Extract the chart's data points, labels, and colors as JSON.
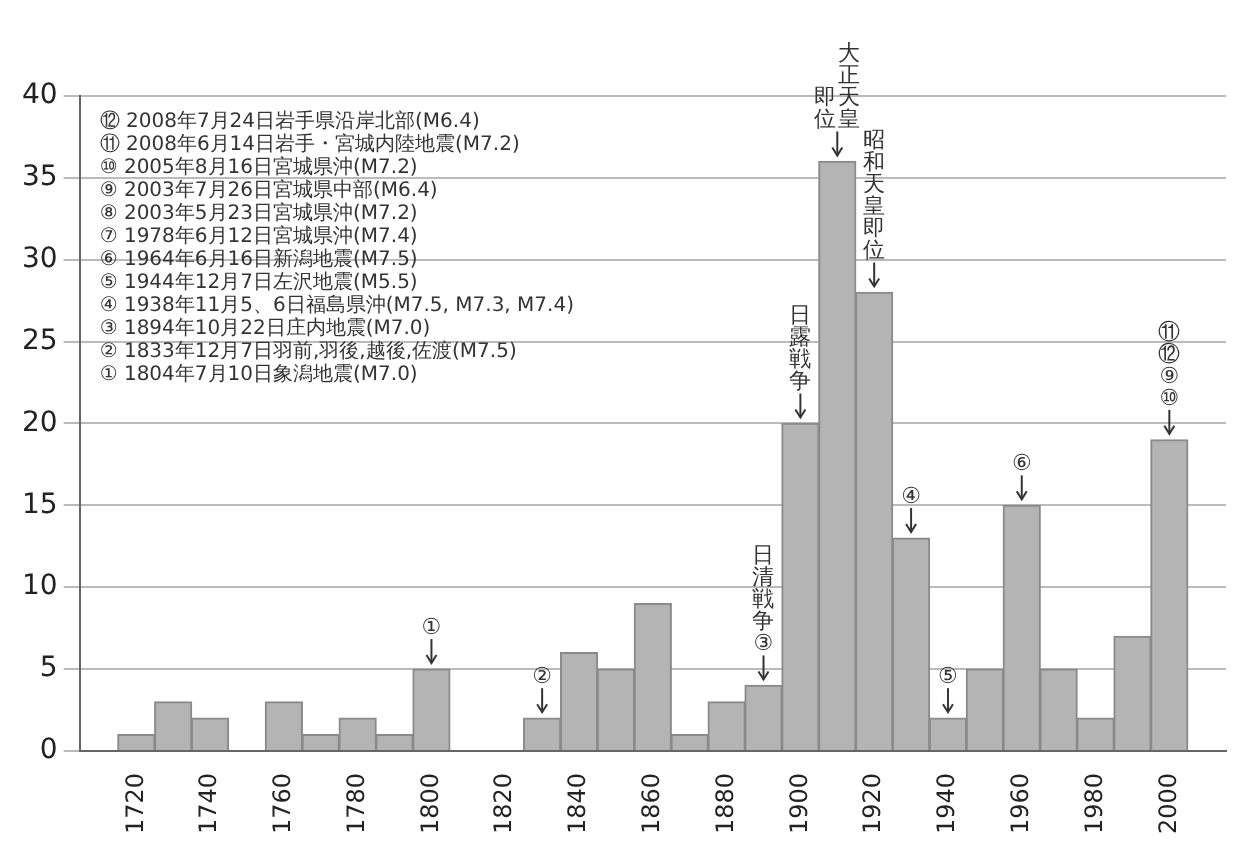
{
  "chart_data": {
    "type": "bar",
    "x": [
      1720,
      1730,
      1740,
      1750,
      1760,
      1770,
      1780,
      1790,
      1800,
      1810,
      1820,
      1830,
      1840,
      1850,
      1860,
      1870,
      1880,
      1890,
      1900,
      1910,
      1920,
      1930,
      1940,
      1950,
      1960,
      1970,
      1980,
      1990,
      2000
    ],
    "values": [
      1,
      3,
      2,
      0,
      3,
      1,
      2,
      1,
      5,
      0,
      0,
      2,
      6,
      5,
      9,
      1,
      3,
      4,
      20,
      36,
      28,
      13,
      2,
      5,
      15,
      5,
      2,
      7,
      19
    ],
    "color": "#b4b4b4",
    "xlim": [
      1715,
      2005
    ],
    "xticks": [
      1720,
      1740,
      1760,
      1780,
      1800,
      1820,
      1840,
      1860,
      1880,
      1900,
      1920,
      1940,
      1960,
      1980,
      2000
    ],
    "ylim": [
      0,
      40
    ],
    "yticks": [
      0,
      5,
      10,
      15,
      20,
      25,
      30,
      35,
      40
    ],
    "grid": "y",
    "annotations": [
      "⑫ 2008年7月24日岩手県沿岸北部(M6.4)",
      "⑪ 2008年6月14日岩手・宮城内陸地震(M7.2)",
      "⑩ 2005年8月16日宮城県沖(M7.2)",
      "⑨ 2003年7月26日宮城県中部(M6.4)",
      "⑧ 2003年5月23日宮城県沖(M7.2)",
      "⑦ 1978年6月12日宮城県沖(M7.4)",
      "⑥ 1964年6月16日新潟地震(M7.5)",
      "⑤ 1944年12月7日左沢地震(M5.5)",
      "④ 1938年11月5、6日福島県沖(M7.5, M7.3, M7.4)",
      "③ 1894年10月22日庄内地震(M7.0)",
      "② 1833年12月7日羽前,羽後,越後,佐渡(M7.5)",
      "① 1804年7月10日象潟地震(M7.0)",
      {
        "text": "①",
        "x": 1800,
        "y": 5
      },
      {
        "text": "②",
        "x": 1830,
        "y": 2
      },
      {
        "text": "日清戦争③",
        "x": 1890,
        "y": 4
      },
      {
        "text": "日露戦争",
        "x": 1900,
        "y": 20
      },
      {
        "text": "大正天皇即位",
        "x": 1910,
        "y": 36
      },
      {
        "text": "昭和天皇即位",
        "x": 1920,
        "y": 28
      },
      {
        "text": "④",
        "x": 1930,
        "y": 13
      },
      {
        "text": "⑤",
        "x": 1940,
        "y": 2
      },
      {
        "text": "⑥",
        "x": 1960,
        "y": 15
      },
      {
        "text": "⑪⑫⑨⑩",
        "x": 2000,
        "y": 19
      }
    ]
  }
}
